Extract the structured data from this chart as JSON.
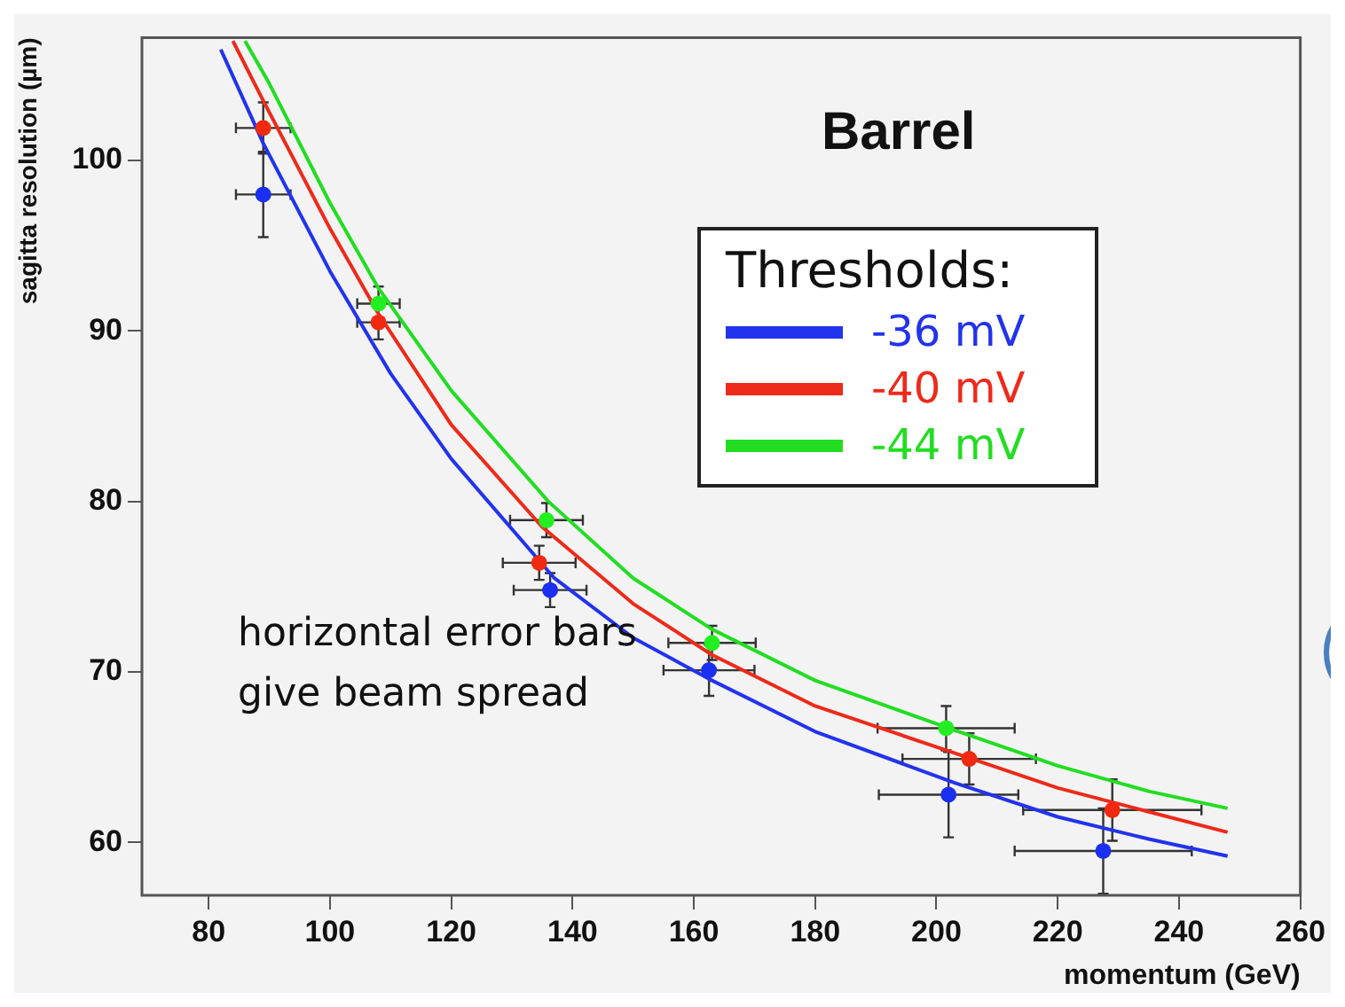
{
  "chart_data": {
    "type": "scatter",
    "title": "Barrel",
    "xlabel": "momentum (GeV)",
    "ylabel": "sagitta resolution (µm)",
    "legend_title": "Thresholds:",
    "legend": "top right",
    "grid": false,
    "marker": "circle",
    "xlim": [
      69,
      260
    ],
    "xticks": [
      80,
      100,
      120,
      140,
      160,
      180,
      200,
      220,
      240,
      260
    ],
    "ylim": [
      56.9,
      107.2
    ],
    "yticks": [
      60,
      70,
      80,
      90,
      100
    ],
    "annotations": [
      "horizontal error bars\ngive beam spread"
    ],
    "series": [
      {
        "type": "line",
        "name": "-36 mV",
        "color": "#2233ee",
        "marker": "none",
        "x": [
          82,
          89,
          100,
          110,
          120,
          137,
          150,
          163,
          180,
          203,
          220,
          235,
          248
        ],
        "values": [
          106.5,
          101,
          93.5,
          87.5,
          82.5,
          75.5,
          72,
          69.5,
          66.5,
          63.5,
          61.5,
          60.2,
          59.2
        ]
      },
      {
        "type": "line",
        "name": "-40 mV",
        "color": "#ee2a1a",
        "marker": "none",
        "x": [
          84,
          89,
          100,
          108,
          120,
          135,
          150,
          163,
          180,
          205,
          220,
          235,
          248
        ],
        "values": [
          107,
          103.5,
          96,
          91,
          84.5,
          78.5,
          74,
          71,
          68,
          65,
          63.2,
          61.8,
          60.6
        ]
      },
      {
        "type": "line",
        "name": "-44 mV",
        "color": "#22dd22",
        "marker": "none",
        "x": [
          86,
          90,
          100,
          108,
          120,
          136,
          150,
          163,
          180,
          202,
          220,
          235,
          248
        ],
        "values": [
          107,
          104.5,
          97.5,
          92.5,
          86.5,
          80,
          75.5,
          72.5,
          69.5,
          66.7,
          64.5,
          63,
          62
        ]
      },
      {
        "type": "scatter",
        "color": "#1a2ff0",
        "x": [
          89,
          136.3,
          162.5,
          202,
          227.5
        ],
        "values": [
          98,
          74.8,
          70.1,
          62.8,
          59.5
        ],
        "errors": [
          2.5,
          1,
          1.5,
          2.5,
          2.5
        ],
        "xerrors": [
          4.5,
          6,
          7.5,
          11.5,
          14.6
        ]
      },
      {
        "type": "scatter",
        "color": "#f02a10",
        "x": [
          89,
          108,
          134.5,
          205.4,
          229
        ],
        "values": [
          101.9,
          90.5,
          76.4,
          64.9,
          61.9
        ],
        "errors": [
          1.5,
          1,
          1,
          1.5,
          1.8
        ],
        "xerrors": [
          4.5,
          3.5,
          6,
          11,
          14.7
        ]
      },
      {
        "type": "scatter",
        "color": "#22ee22",
        "x": [
          108,
          135.7,
          163,
          201.6
        ],
        "values": [
          91.6,
          78.9,
          71.7,
          66.7
        ],
        "errors": [
          1,
          1,
          1,
          1.3
        ],
        "xerrors": [
          3.5,
          6,
          7.2,
          11.3
        ]
      }
    ]
  }
}
